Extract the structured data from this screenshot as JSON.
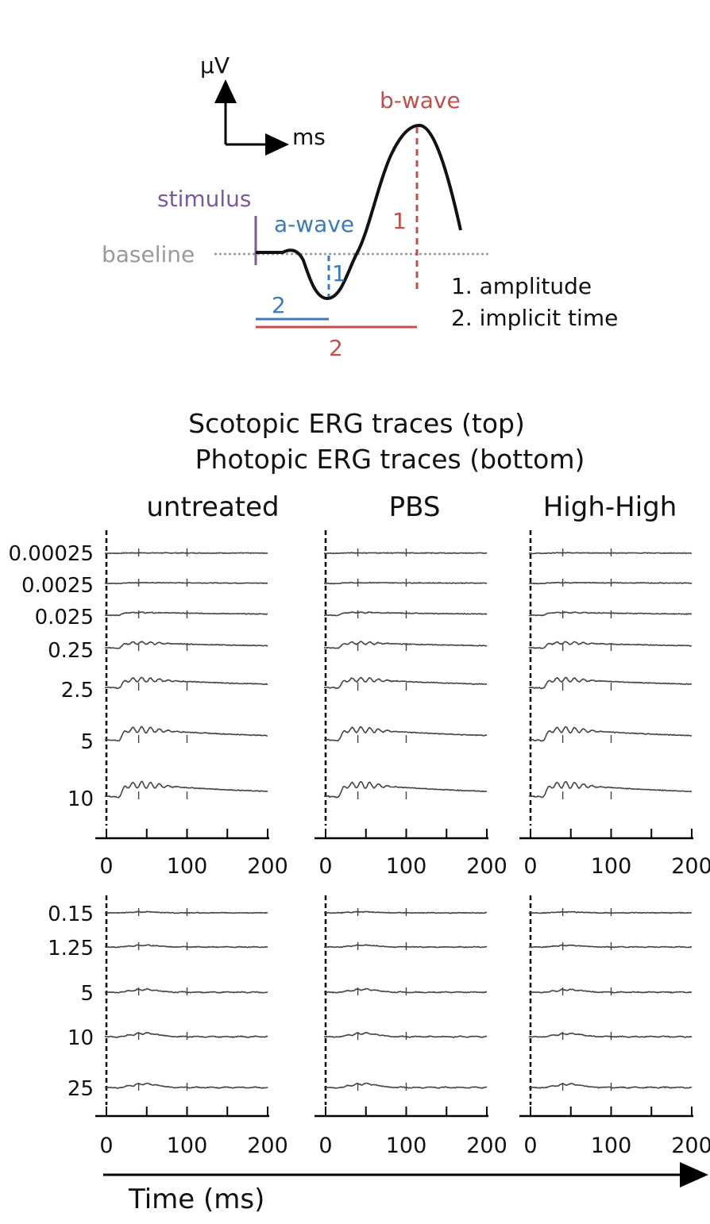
{
  "schematic": {
    "y_unit": "µV",
    "x_unit": "ms",
    "stimulus_label": "stimulus",
    "baseline_label": "baseline",
    "a_wave_label": "a-wave",
    "b_wave_label": "b-wave",
    "a_amp_marker": "1",
    "b_amp_marker": "1",
    "a_time_marker": "2",
    "b_time_marker": "2",
    "legend": [
      "1. amplitude",
      "2. implicit time"
    ],
    "colors": {
      "stimulus": "#7a5a9a",
      "a_wave": "#3d7ab8",
      "b_wave": "#c0504d",
      "baseline": "#9a9a9a",
      "trace": "#111111"
    }
  },
  "title_lines": [
    "Scotopic ERG traces (top)",
    "Photopic ERG traces (bottom)"
  ],
  "chart_data": {
    "type": "line",
    "columns": [
      "untreated",
      "PBS",
      "High-High"
    ],
    "xlabel": "Time (ms)",
    "xlim": [
      0,
      200
    ],
    "x_ticks": [
      "0",
      "100",
      "200"
    ],
    "panels": [
      {
        "name": "scotopic",
        "row_labels": [
          "0.00025",
          "0.0025",
          "0.025",
          "0.25",
          "2.5",
          "5",
          "10"
        ]
      },
      {
        "name": "photopic",
        "row_labels": [
          "0.15",
          "1.25",
          "5",
          "10",
          "25"
        ]
      }
    ]
  }
}
